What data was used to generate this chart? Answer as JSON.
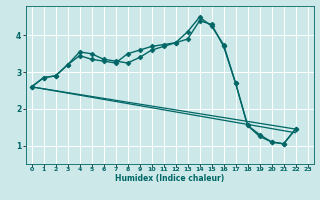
{
  "title": "",
  "xlabel": "Humidex (Indice chaleur)",
  "ylabel": "",
  "background_color": "#cce8e8",
  "grid_color": "#ffffff",
  "line_color": "#006666",
  "xlim": [
    -0.5,
    23.5
  ],
  "ylim": [
    0.5,
    4.8
  ],
  "xticks": [
    0,
    1,
    2,
    3,
    4,
    5,
    6,
    7,
    8,
    9,
    10,
    11,
    12,
    13,
    14,
    15,
    16,
    17,
    18,
    19,
    20,
    21,
    22,
    23
  ],
  "yticks": [
    1,
    2,
    3,
    4
  ],
  "series": [
    {
      "x": [
        0,
        1,
        2,
        3,
        4,
        5,
        6,
        7,
        8,
        9,
        10,
        11,
        12,
        13,
        14,
        15,
        16,
        17,
        18,
        19,
        20,
        21,
        22
      ],
      "y": [
        2.6,
        2.85,
        2.9,
        3.2,
        3.45,
        3.35,
        3.3,
        3.25,
        3.5,
        3.6,
        3.7,
        3.75,
        3.8,
        4.1,
        4.5,
        4.25,
        3.75,
        2.7,
        1.55,
        1.3,
        1.1,
        1.05,
        1.45
      ],
      "marker": "D",
      "markersize": 2.5,
      "linewidth": 1.0
    },
    {
      "x": [
        0,
        1,
        2,
        3,
        4,
        5,
        6,
        7,
        8,
        9,
        10,
        11,
        12,
        13,
        14,
        15,
        16,
        17,
        18,
        19,
        20,
        21,
        22
      ],
      "y": [
        2.6,
        2.85,
        2.9,
        3.2,
        3.55,
        3.5,
        3.35,
        3.3,
        3.25,
        3.4,
        3.6,
        3.7,
        3.8,
        3.9,
        4.4,
        4.3,
        3.7,
        2.7,
        1.55,
        1.25,
        1.1,
        1.05,
        1.45
      ],
      "marker": "D",
      "markersize": 2.5,
      "linewidth": 1.0
    },
    {
      "x": [
        0,
        22
      ],
      "y": [
        2.6,
        1.45
      ],
      "marker": null,
      "markersize": 0,
      "linewidth": 0.9
    },
    {
      "x": [
        0,
        22
      ],
      "y": [
        2.6,
        1.35
      ],
      "marker": null,
      "markersize": 0,
      "linewidth": 0.9
    }
  ]
}
